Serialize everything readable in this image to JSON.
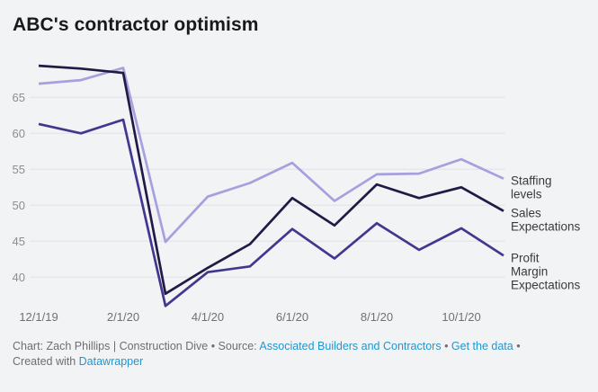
{
  "chart_data": {
    "type": "line",
    "title": "ABC's contractor optimism",
    "x": [
      "12/1/19",
      "1/1/20",
      "2/1/20",
      "3/1/20",
      "4/1/20",
      "5/1/20",
      "6/1/20",
      "7/1/20",
      "8/1/20",
      "9/1/20",
      "10/1/20",
      "11/1/20"
    ],
    "x_tick_labels": [
      "12/1/19",
      "2/1/20",
      "4/1/20",
      "6/1/20",
      "8/1/20",
      "10/1/20"
    ],
    "y_ticks": [
      40,
      45,
      50,
      55,
      60,
      65
    ],
    "ylim": [
      35.5,
      70.5
    ],
    "grid": "horizontal-only",
    "legend_position": "direct-labels-at-line-ends",
    "series": [
      {
        "name": "Staffing levels",
        "color": "#a5a0de",
        "values": [
          66.9,
          67.4,
          69.1,
          44.9,
          51.2,
          53.1,
          55.9,
          50.6,
          54.3,
          54.4,
          56.4,
          53.7
        ]
      },
      {
        "name": "Profit Margin Expectations",
        "color": "#40388f",
        "values": [
          61.3,
          60.0,
          61.9,
          36.0,
          40.7,
          41.5,
          46.7,
          42.6,
          47.5,
          43.8,
          46.8,
          43.0
        ]
      },
      {
        "name": "Sales Expectations",
        "color": "#221a45",
        "values": [
          69.4,
          69.0,
          68.4,
          37.7,
          41.3,
          44.6,
          51.0,
          47.2,
          52.9,
          51.0,
          52.5,
          49.2
        ]
      }
    ],
    "legend_order": [
      "Staffing levels",
      "Sales Expectations",
      "Profit Margin Expectations"
    ]
  },
  "footer": {
    "credit_prefix": "Chart: Zach Phillips | Construction Dive • Source: ",
    "source_link": "Associated Builders and Contractors",
    "sep": " • ",
    "data_link": "Get the data",
    "tail_sep": " •",
    "created_prefix": "Created with ",
    "tool_link": "Datawrapper"
  },
  "colors": {
    "background": "#f2f3f5",
    "gridline": "#dfe1e5",
    "title_text": "#19191b",
    "axis_text": "#7d7d83",
    "legend_text": "#3a3a3d",
    "footer_text": "#6e6e72",
    "link": "#2196cf"
  }
}
